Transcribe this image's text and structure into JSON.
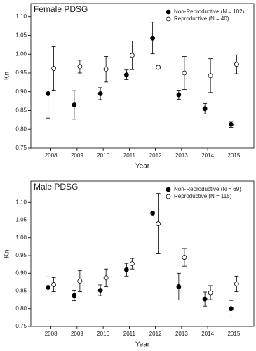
{
  "chart_data": [
    {
      "type": "scatter",
      "title": "Female PDSG",
      "x_label": "Year",
      "y_label": "Kn",
      "categories": [
        "2008",
        "2009",
        "2010",
        "2011",
        "2012",
        "2013",
        "2014",
        "2015"
      ],
      "ylim": [
        0.75,
        1.135
      ],
      "yticks": [
        {
          "value": 0.75,
          "label": "0.75"
        },
        {
          "value": 0.8,
          "label": "0.80"
        },
        0.85,
        {
          "value": 0.9,
          "label": "0.90"
        },
        0.95,
        {
          "value": 1.0,
          "label": "1.00"
        },
        1.05,
        {
          "value": 1.1,
          "label": "1.10"
        }
      ],
      "legend": "upper-right",
      "series": [
        {
          "name": "Non-Reproductive (N = 102)",
          "marker": "filled",
          "color": "#000000",
          "values": [
            0.895,
            0.865,
            0.895,
            0.945,
            1.043,
            0.892,
            0.855,
            0.813
          ],
          "errors": [
            0.065,
            0.038,
            0.016,
            0.013,
            0.042,
            0.012,
            0.014,
            0.008
          ]
        },
        {
          "name": "Reproductive (N = 40)",
          "marker": "open",
          "color": "#000000",
          "values": [
            0.962,
            0.967,
            0.96,
            0.997,
            0.965,
            0.95,
            0.943,
            0.973
          ],
          "errors": [
            0.058,
            0.017,
            0.034,
            0.038,
            0,
            0.044,
            0.045,
            0.025
          ]
        }
      ]
    },
    {
      "type": "scatter",
      "title": "Male PDSG",
      "x_label": "Year",
      "y_label": "Kn",
      "categories": [
        "2008",
        "2009",
        "2010",
        "2011",
        "2012",
        "2013",
        "2014",
        "2015"
      ],
      "ylim": [
        0.75,
        1.16
      ],
      "yticks": [
        {
          "value": 0.75,
          "label": "0.75"
        },
        {
          "value": 0.8,
          "label": "0.80"
        },
        0.85,
        {
          "value": 0.9,
          "label": "0.90"
        },
        0.95,
        {
          "value": 1.0,
          "label": "1.00"
        },
        1.05,
        {
          "value": 1.1,
          "label": "1.10"
        }
      ],
      "legend": "upper-right",
      "series": [
        {
          "name": "Non-Reproductive (N = 69)",
          "marker": "filled",
          "color": "#000000",
          "values": [
            0.86,
            0.837,
            0.852,
            0.91,
            1.07,
            0.862,
            0.827,
            0.8
          ],
          "errors": [
            0.03,
            0.015,
            0.015,
            0.018,
            0,
            0.038,
            0.02,
            0.023
          ]
        },
        {
          "name": "Reproductive (N = 115)",
          "marker": "open",
          "color": "#000000",
          "values": [
            0.868,
            0.878,
            0.887,
            0.927,
            1.04,
            0.945,
            0.845,
            0.87
          ],
          "errors": [
            0.02,
            0.03,
            0.025,
            0.015,
            0.085,
            0.025,
            0.02,
            0.022
          ]
        }
      ]
    }
  ]
}
